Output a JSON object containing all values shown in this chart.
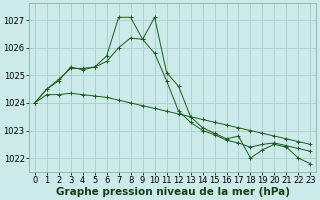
{
  "background_color": "#cceaea",
  "grid_color": "#aacccc",
  "line_color": "#1a5c1a",
  "xlabel": "Graphe pression niveau de la mer (hPa)",
  "xlabel_fontsize": 7.5,
  "tick_fontsize": 6,
  "ylim": [
    1021.5,
    1027.6
  ],
  "yticks": [
    1022,
    1023,
    1024,
    1025,
    1026,
    1027
  ],
  "xlim": [
    -0.5,
    23.5
  ],
  "xticks": [
    0,
    1,
    2,
    3,
    4,
    5,
    6,
    7,
    8,
    9,
    10,
    11,
    12,
    13,
    14,
    15,
    16,
    17,
    18,
    19,
    20,
    21,
    22,
    23
  ],
  "series": [
    [
      1024.0,
      1024.5,
      1024.8,
      1025.3,
      1025.2,
      1025.3,
      1025.7,
      1027.1,
      1027.1,
      1026.3,
      1027.1,
      1025.1,
      1024.6,
      1023.5,
      1023.1,
      1022.9,
      1022.7,
      1022.8,
      1022.0,
      1022.3,
      1022.5,
      1022.4,
      1022.0,
      1021.8
    ],
    [
      1024.0,
      1024.5,
      1024.85,
      1025.25,
      1025.25,
      1025.3,
      1025.5,
      1026.0,
      1026.35,
      1026.3,
      1025.8,
      1024.8,
      1023.7,
      1023.3,
      1023.0,
      1022.85,
      1022.65,
      1022.55,
      1022.4,
      1022.5,
      1022.55,
      1022.45,
      1022.35,
      1022.25
    ],
    [
      1024.0,
      1024.3,
      1024.3,
      1024.35,
      1024.3,
      1024.25,
      1024.2,
      1024.1,
      1024.0,
      1023.9,
      1023.8,
      1023.7,
      1023.6,
      1023.5,
      1023.4,
      1023.3,
      1023.2,
      1023.1,
      1023.0,
      1022.9,
      1022.8,
      1022.7,
      1022.6,
      1022.5
    ]
  ]
}
